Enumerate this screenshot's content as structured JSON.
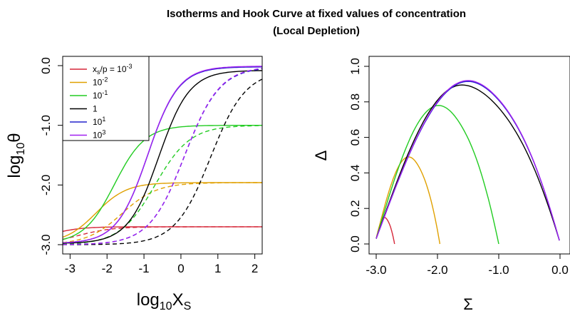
{
  "title": {
    "line1": "Isotherms and Hook Curve at fixed values of concentration",
    "line2": "(Local Depletion)"
  },
  "chart_data": [
    {
      "type": "line",
      "name": "isotherms",
      "xlabel_main": "log",
      "xlabel_sub": "10",
      "xlabel_tail": "X",
      "xlabel_tail_sub": "S",
      "ylabel_main": "log",
      "ylabel_sub": "10",
      "ylabel_tail": "θ",
      "xlim": [
        -3.2,
        2.2
      ],
      "ylim": [
        -3.0,
        0.0
      ],
      "xticks": [
        -3,
        -2,
        -1,
        0,
        1,
        2
      ],
      "yticks": [
        0.0,
        -1.0,
        -2.0,
        -3.0
      ],
      "ytick_labels": [
        "0.0",
        "-1.0",
        "-2.0",
        "-3.0"
      ],
      "legend": {
        "placement": "top-left",
        "entries": [
          {
            "label": "x",
            "sub": "s",
            "mid": "/p = 10",
            "sup": "-3",
            "color": "#D62739"
          },
          {
            "label": "10",
            "sup": "-2",
            "color": "#E0A000"
          },
          {
            "label": "10",
            "sup": "-1",
            "color": "#22CC22"
          },
          {
            "label": "1",
            "sup": "",
            "color": "#000000"
          },
          {
            "label": "10",
            "sup": "1",
            "color": "#2222CC"
          },
          {
            "label": "10",
            "sup": "3",
            "color": "#A020F0"
          }
        ]
      },
      "series": [
        {
          "name": "1e-3",
          "color": "#D62739",
          "plateau": -2.7,
          "solid_mid": -3.6,
          "dashed_mid": -2.8
        },
        {
          "name": "1e-2",
          "color": "#E0A000",
          "plateau": -1.96,
          "solid_mid": -2.3,
          "dashed_mid": -1.6
        },
        {
          "name": "1e-1",
          "color": "#22CC22",
          "plateau": -1.0,
          "solid_mid": -1.8,
          "dashed_mid": -0.7
        },
        {
          "name": "1",
          "color": "#000000",
          "plateau": -0.08,
          "solid_mid": -0.6,
          "dashed_mid": 0.8
        },
        {
          "name": "1e1",
          "color": "#2222CC",
          "plateau": -0.02,
          "solid_mid": -0.9,
          "dashed_mid": 0.1
        },
        {
          "name": "1e3",
          "color": "#A020F0",
          "plateau": -0.01,
          "solid_mid": -0.9,
          "dashed_mid": 0.1
        }
      ]
    },
    {
      "type": "line",
      "name": "hook-curve",
      "xlabel": "Σ",
      "ylabel": "Δ",
      "xlim": [
        -3.1,
        0.05
      ],
      "ylim": [
        0.0,
        1.0
      ],
      "xticks": [
        -3.0,
        -2.0,
        -1.0,
        0.0
      ],
      "xtick_labels": [
        "-3.0",
        "-2.0",
        "-1.0",
        "0.0"
      ],
      "yticks": [
        0.0,
        0.2,
        0.4,
        0.6,
        0.8,
        1.0
      ],
      "ytick_labels": [
        "0.0",
        "0.2",
        "0.4",
        "0.6",
        "0.8",
        "1.0"
      ],
      "series": [
        {
          "name": "1e-3",
          "color": "#D62739",
          "x_start": -3.0,
          "x_end": -2.7,
          "x_peak": -2.87,
          "y_peak": 0.15,
          "y_start": 0.03,
          "y_end": 0.0
        },
        {
          "name": "1e-2",
          "color": "#E0A000",
          "x_start": -3.0,
          "x_end": -1.96,
          "x_peak": -2.47,
          "y_peak": 0.49,
          "y_start": 0.03,
          "y_end": 0.0
        },
        {
          "name": "1e-1",
          "color": "#22CC22",
          "x_start": -3.0,
          "x_end": -1.0,
          "x_peak": -1.98,
          "y_peak": 0.78,
          "y_start": 0.03,
          "y_end": 0.0
        },
        {
          "name": "1",
          "color": "#000000",
          "x_start": -3.0,
          "x_end": -0.01,
          "x_peak": -1.6,
          "y_peak": 0.895,
          "y_start": 0.03,
          "y_end": 0.02
        },
        {
          "name": "1e1",
          "color": "#2222CC",
          "x_start": -3.0,
          "x_end": -0.01,
          "x_peak": -1.5,
          "y_peak": 0.915,
          "y_start": 0.03,
          "y_end": 0.02
        },
        {
          "name": "1e3",
          "color": "#A020F0",
          "x_start": -3.0,
          "x_end": -0.01,
          "x_peak": -1.5,
          "y_peak": 0.92,
          "y_start": 0.03,
          "y_end": 0.02
        }
      ]
    }
  ]
}
